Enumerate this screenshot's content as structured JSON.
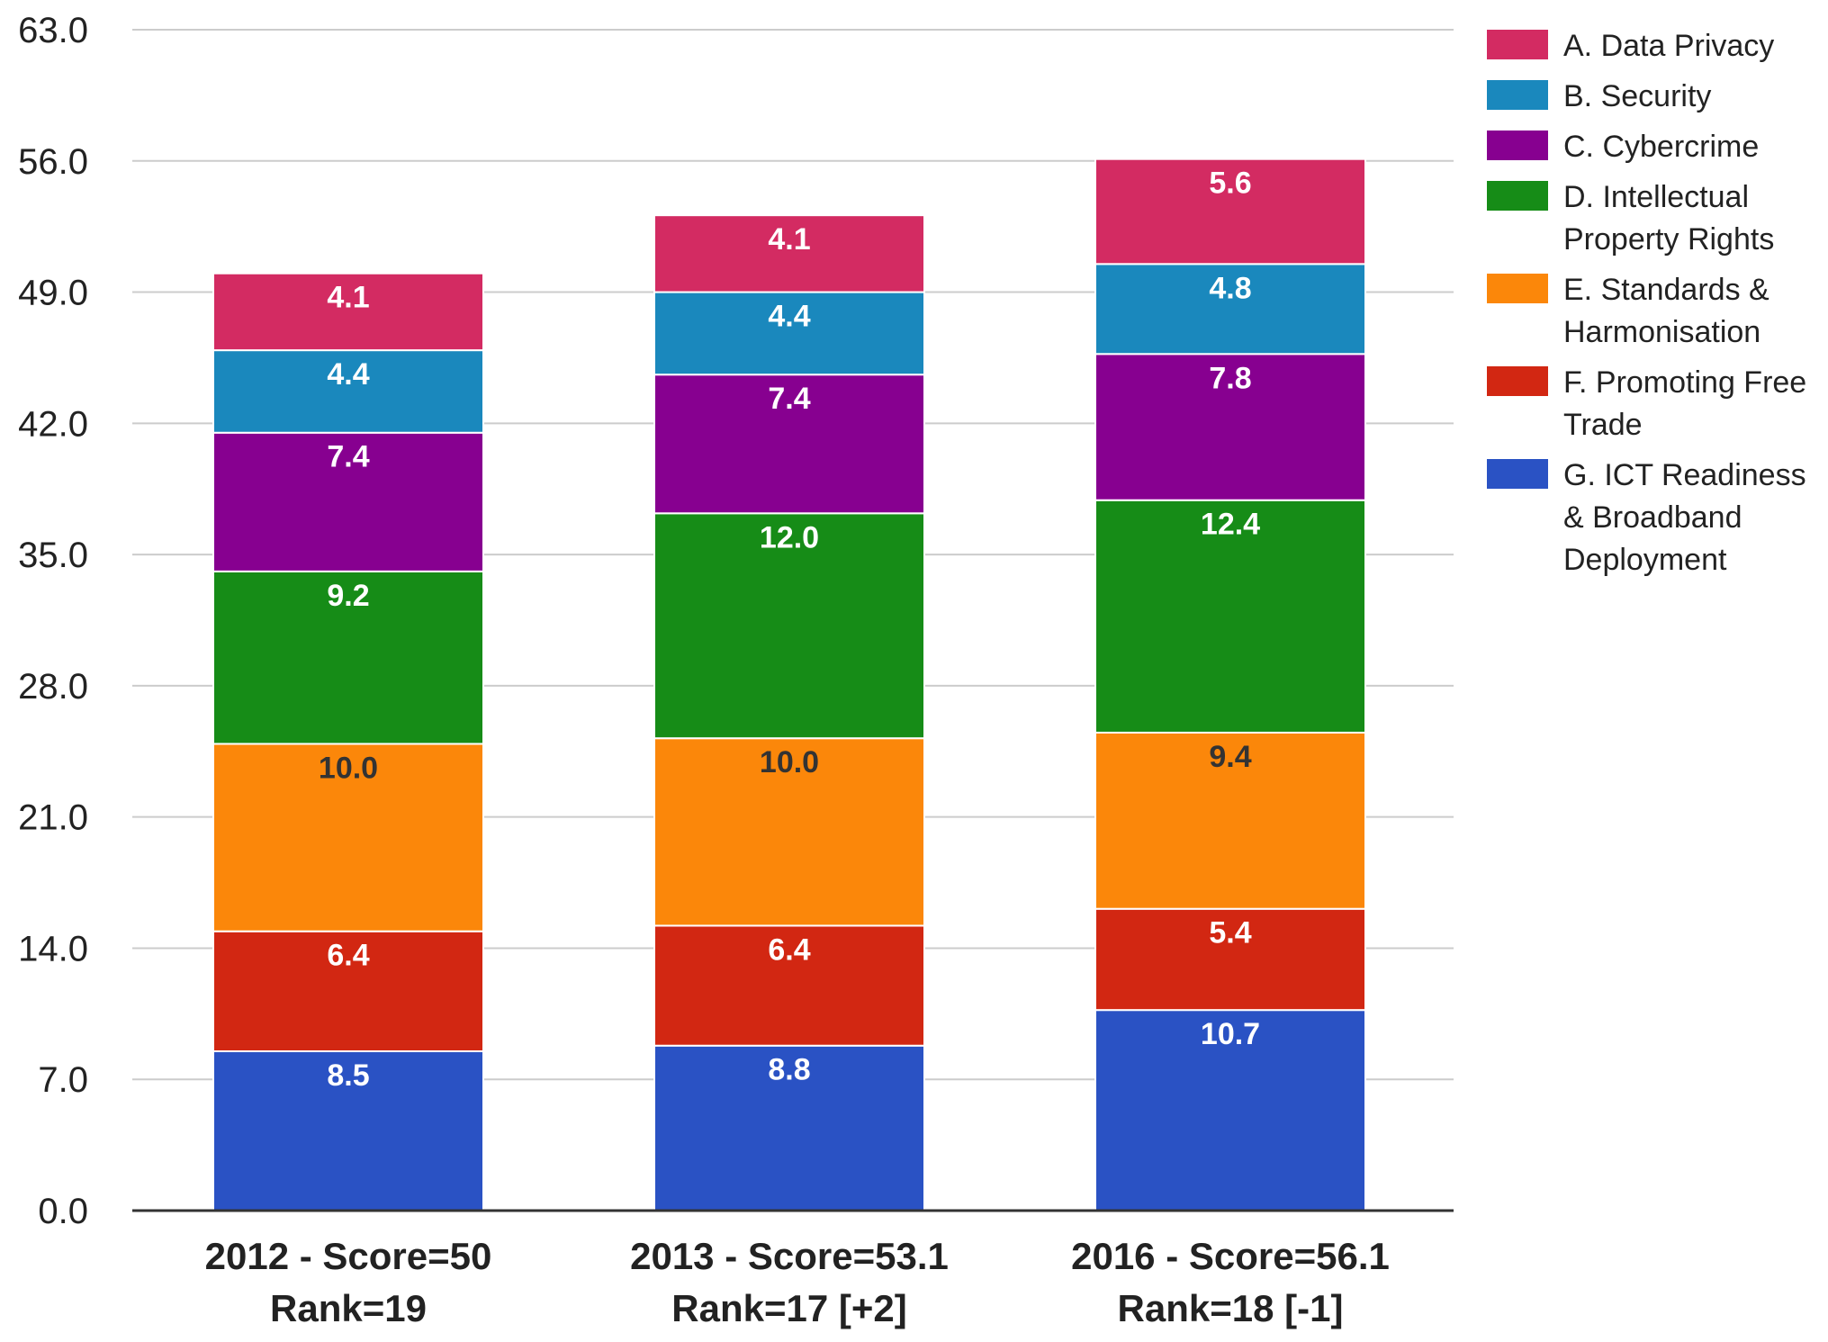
{
  "chart_data": {
    "type": "bar",
    "stacked": true,
    "categories": [
      [
        "2012 - Score=50",
        "Rank=19"
      ],
      [
        "2013 - Score=53.1",
        "Rank=17 [+2]"
      ],
      [
        "2016 - Score=56.1",
        "Rank=18 [-1]"
      ]
    ],
    "ylim": [
      0,
      63
    ],
    "yticks": [
      "0.0",
      "7.0",
      "14.0",
      "21.0",
      "28.0",
      "35.0",
      "42.0",
      "49.0",
      "56.0",
      "63.0"
    ],
    "grid": true,
    "legend_position": "right",
    "series": [
      {
        "name": "G. ICT Readiness & Broadband Deployment",
        "color": "#2a52c4",
        "label_color": "#ffffff",
        "values": [
          8.5,
          8.8,
          10.7
        ],
        "labels": [
          "8.5",
          "8.8",
          "10.7"
        ]
      },
      {
        "name": "F. Promoting Free Trade",
        "color": "#d22712",
        "label_color": "#ffffff",
        "values": [
          6.4,
          6.4,
          5.4
        ],
        "labels": [
          "6.4",
          "6.4",
          "5.4"
        ]
      },
      {
        "name": "E. Standards & Harmonisation",
        "color": "#fb870a",
        "label_color": "#333333",
        "values": [
          10.0,
          10.0,
          9.4
        ],
        "labels": [
          "10.0",
          "10.0",
          "9.4"
        ]
      },
      {
        "name": "D. Intellectual Property Rights",
        "color": "#168c17",
        "label_color": "#ffffff",
        "values": [
          9.2,
          12.0,
          12.4
        ],
        "labels": [
          "9.2",
          "12.0",
          "12.4"
        ]
      },
      {
        "name": "C. Cybercrime",
        "color": "#870090",
        "label_color": "#ffffff",
        "values": [
          7.4,
          7.4,
          7.8
        ],
        "labels": [
          "7.4",
          "7.4",
          "7.8"
        ]
      },
      {
        "name": "B. Security",
        "color": "#1a88bd",
        "label_color": "#ffffff",
        "values": [
          4.4,
          4.4,
          4.8
        ],
        "labels": [
          "4.4",
          "4.4",
          "4.8"
        ]
      },
      {
        "name": "A. Data Privacy",
        "color": "#d32b62",
        "label_color": "#ffffff",
        "values": [
          4.1,
          4.1,
          5.6
        ],
        "labels": [
          "4.1",
          "4.1",
          "5.6"
        ]
      }
    ],
    "legend": [
      {
        "lines": [
          "A. Data Privacy"
        ],
        "color": "#d32b62"
      },
      {
        "lines": [
          "B. Security"
        ],
        "color": "#1a88bd"
      },
      {
        "lines": [
          "C. Cybercrime"
        ],
        "color": "#870090"
      },
      {
        "lines": [
          "D. Intellectual",
          "Property Rights"
        ],
        "color": "#168c17"
      },
      {
        "lines": [
          "E. Standards &",
          "Harmonisation"
        ],
        "color": "#fb870a"
      },
      {
        "lines": [
          "F. Promoting Free",
          "Trade"
        ],
        "color": "#d22712"
      },
      {
        "lines": [
          "G. ICT Readiness",
          "& Broadband",
          "Deployment"
        ],
        "color": "#2a52c4"
      }
    ]
  }
}
